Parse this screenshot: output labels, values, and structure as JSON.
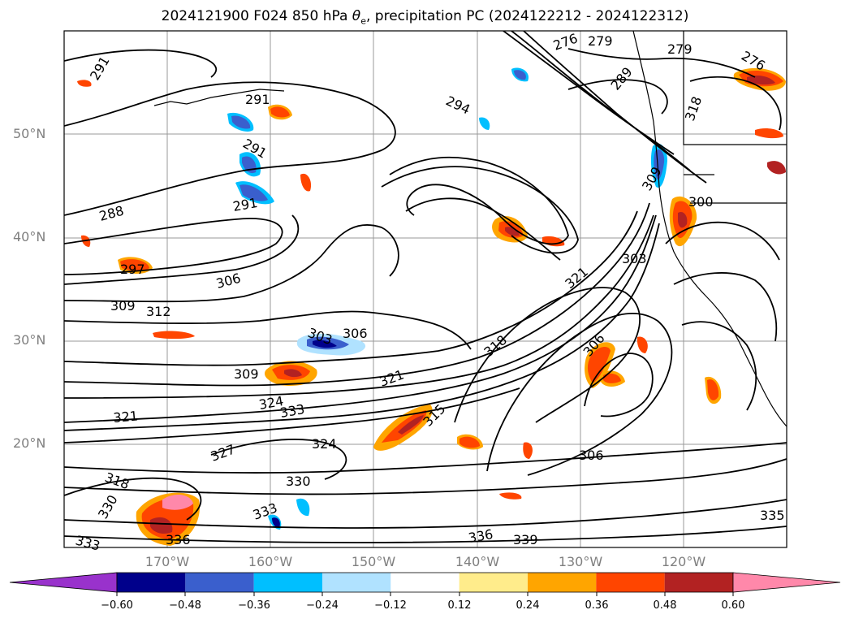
{
  "title": {
    "prefix": "2024121900 F024 850 hPa ",
    "theta": "θ",
    "theta_sub": "e",
    "suffix": ", precipitation PC (2024122212 - 2024122312)"
  },
  "axes": {
    "lat_labels": [
      "50°N",
      "40°N",
      "30°N",
      "20°N"
    ],
    "lon_labels": [
      "170°W",
      "160°W",
      "150°W",
      "140°W",
      "130°W",
      "120°W"
    ]
  },
  "contour_labels": [
    "291",
    "291",
    "291",
    "291",
    "294",
    "288",
    "297",
    "306",
    "309",
    "312",
    "303",
    "306",
    "309",
    "321",
    "324",
    "333",
    "321",
    "324",
    "327",
    "330",
    "333",
    "336",
    "336",
    "339",
    "318",
    "321",
    "315",
    "306",
    "306",
    "303",
    "300",
    "309",
    "276",
    "279",
    "279",
    "276",
    "289",
    "318",
    "318",
    "330",
    "335",
    "333"
  ],
  "colorbar": {
    "colors": [
      "#9932cc",
      "#00008b",
      "#3a5fcd",
      "#00bfff",
      "#b0e2ff",
      "#ffffff",
      "#ffec8b",
      "#ffa500",
      "#ff4500",
      "#b22222",
      "#ff88aa"
    ],
    "tick_labels": [
      "−0.60",
      "−0.48",
      "−0.36",
      "−0.24",
      "−0.12",
      "0.12",
      "0.24",
      "0.36",
      "0.48",
      "0.60"
    ]
  },
  "colors": {
    "grid": "#999999",
    "contour": "#000000",
    "label": "#808080"
  }
}
